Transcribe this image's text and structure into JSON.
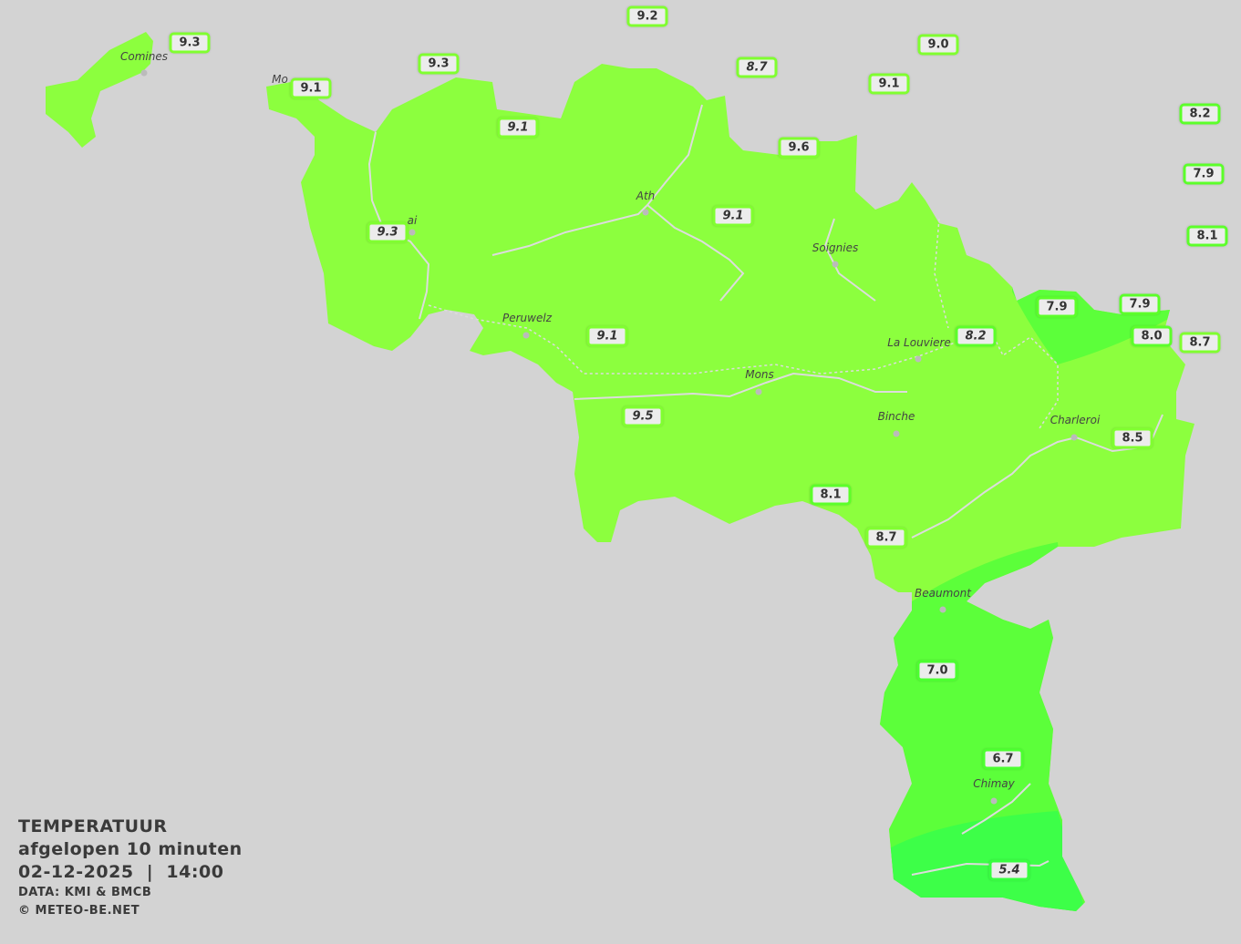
{
  "legend": {
    "title": "TEMPERATUUR",
    "period": "afgelopen 10 minuten",
    "datetime": "02-12-2025  |  14:00",
    "source": "DATA: KMI & BMCB",
    "copyright": "© METEO-BE.NET"
  },
  "colors": {
    "background": "#d3d3d3",
    "zone_9": "#8cff3e",
    "zone_7_8": "#5cff3a",
    "zone_5_6": "#3dff48"
  },
  "cities": [
    "Comines",
    "Mo",
    "ai",
    "Ath",
    "Soignies",
    "Peruwelz",
    "La Louviere",
    "Mons",
    "Binche",
    "Charleroi",
    "Beaumont",
    "Chimay"
  ],
  "stations": [
    {
      "value": "9.2",
      "italic": false
    },
    {
      "value": "9.3",
      "italic": false
    },
    {
      "value": "9.0",
      "italic": false
    },
    {
      "value": "9.3",
      "italic": false
    },
    {
      "value": "8.7",
      "italic": true
    },
    {
      "value": "9.1",
      "italic": false
    },
    {
      "value": "9.1",
      "italic": false
    },
    {
      "value": "8.2",
      "italic": false
    },
    {
      "value": "9.1",
      "italic": true
    },
    {
      "value": "9.6",
      "italic": false
    },
    {
      "value": "7.9",
      "italic": false
    },
    {
      "value": "9.1",
      "italic": true
    },
    {
      "value": "9.3",
      "italic": true
    },
    {
      "value": "8.1",
      "italic": false
    },
    {
      "value": "7.9",
      "italic": false
    },
    {
      "value": "7.9",
      "italic": false
    },
    {
      "value": "9.1",
      "italic": true
    },
    {
      "value": "8.2",
      "italic": true
    },
    {
      "value": "8.0",
      "italic": false
    },
    {
      "value": "8.7",
      "italic": false
    },
    {
      "value": "9.5",
      "italic": true
    },
    {
      "value": "8.5",
      "italic": false
    },
    {
      "value": "8.1",
      "italic": false
    },
    {
      "value": "8.7",
      "italic": false
    },
    {
      "value": "7.0",
      "italic": false
    },
    {
      "value": "6.7",
      "italic": false
    },
    {
      "value": "5.4",
      "italic": true
    }
  ]
}
